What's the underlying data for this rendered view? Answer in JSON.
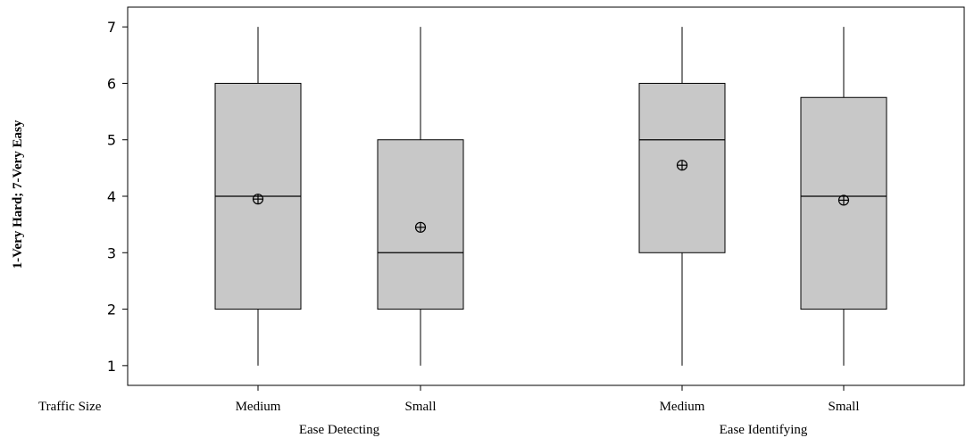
{
  "chart_data": {
    "type": "boxplot",
    "ylabel": "1-Very Hard; 7-Very Easy",
    "row_label": "Traffic Size",
    "ylim": [
      0.65,
      7.35
    ],
    "yticks": [
      1,
      2,
      3,
      4,
      5,
      6,
      7
    ],
    "groups": [
      {
        "name": "Ease Detecting",
        "boxes": [
          {
            "category": "Medium",
            "min": 1,
            "q1": 2,
            "median": 4,
            "q3": 6,
            "max": 7,
            "mean": 3.95
          },
          {
            "category": "Small",
            "min": 1,
            "q1": 2,
            "median": 3,
            "q3": 5,
            "max": 7,
            "mean": 3.45
          }
        ]
      },
      {
        "name": "Ease Identifying",
        "boxes": [
          {
            "category": "Medium",
            "min": 1,
            "q1": 3,
            "median": 5,
            "q3": 6,
            "max": 7,
            "mean": 4.55
          },
          {
            "category": "Small",
            "min": 1,
            "q1": 2,
            "median": 4,
            "q3": 5.75,
            "max": 7,
            "mean": 3.93
          }
        ]
      }
    ],
    "box_fill": "#c8c8c8",
    "grid": false,
    "legend": "none"
  }
}
